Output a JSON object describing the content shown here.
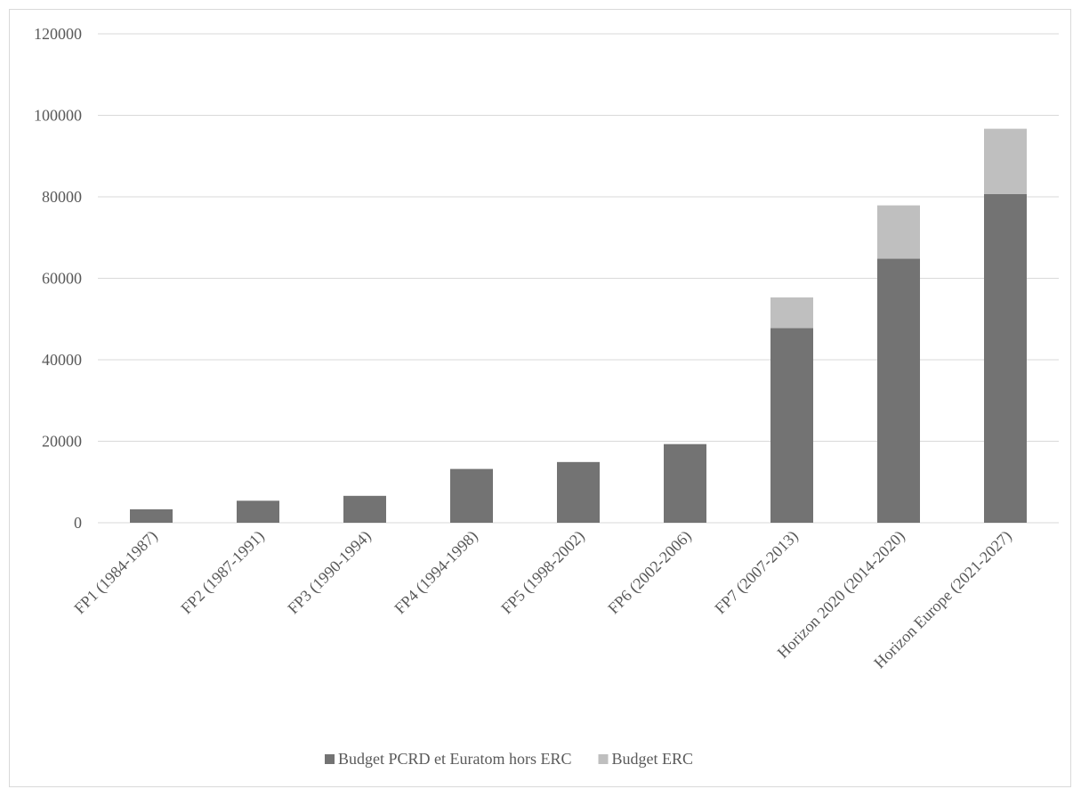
{
  "chart_data": {
    "type": "bar",
    "stacked": true,
    "title": "",
    "xlabel": "",
    "ylabel": "",
    "ylim": [
      0,
      120000
    ],
    "yticks": [
      0,
      20000,
      40000,
      60000,
      80000,
      100000,
      120000
    ],
    "ytick_labels": [
      "0",
      "20000",
      "40000",
      "60000",
      "80000",
      "100000",
      "120000"
    ],
    "grid": true,
    "legend_position": "bottom",
    "categories": [
      "FP1 (1984-1987)",
      "FP2 (1987-1991)",
      "FP3 (1990-1994)",
      "FP4 (1994-1998)",
      "FP5 (1998-2002)",
      "FP6 (2002-2006)",
      "FP7 (2007-2013)",
      "Horizon 2020 (2014-2020)",
      "Horizon Europe (2021-2027)"
    ],
    "series": [
      {
        "name": "Budget PCRD et Euratom hors ERC",
        "color": "#737373",
        "values": [
          3300,
          5400,
          6600,
          13200,
          14900,
          19300,
          47800,
          64800,
          80700
        ]
      },
      {
        "name": "Budget ERC",
        "color": "#bfbfbf",
        "values": [
          0,
          0,
          0,
          0,
          0,
          0,
          7500,
          13100,
          16000
        ]
      }
    ],
    "colors": {
      "gridline": "#d9d9d9",
      "axis": "#d9d9d9",
      "text": "#595959"
    }
  }
}
